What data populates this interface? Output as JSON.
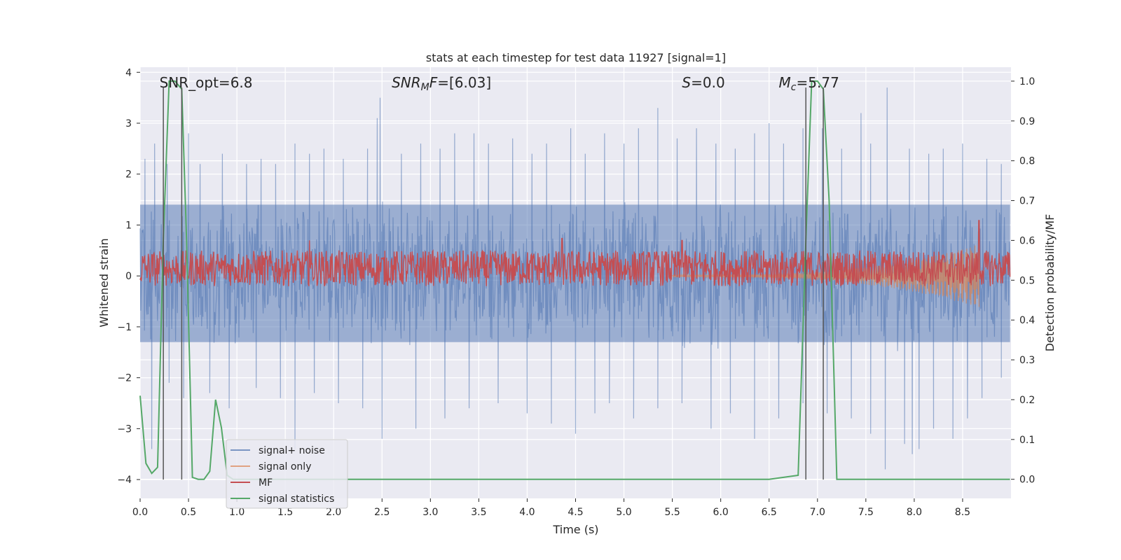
{
  "chart_data": {
    "type": "line",
    "title": "stats at each timestep for test data 11927 [signal=1]",
    "xlabel": "Time (s)",
    "ylabel_left": "Whitened strain",
    "ylabel_right": "Detection probability/MF",
    "xlim": [
      0.0,
      9.0
    ],
    "ylim_left": [
      -4.37,
      4.1
    ],
    "ylim_right": [
      -0.048,
      1.035
    ],
    "xticks": [
      0.0,
      0.5,
      1.0,
      1.5,
      2.0,
      2.5,
      3.0,
      3.5,
      4.0,
      4.5,
      5.0,
      5.5,
      6.0,
      6.5,
      7.0,
      7.5,
      8.0,
      8.5
    ],
    "xtick_labels": [
      "0.0",
      "0.5",
      "1.0",
      "1.5",
      "2.0",
      "2.5",
      "3.0",
      "3.5",
      "4.0",
      "4.5",
      "5.0",
      "5.5",
      "6.0",
      "6.5",
      "7.0",
      "7.5",
      "8.0",
      "8.5"
    ],
    "yticks_left": [
      -4,
      -3,
      -2,
      -1,
      0,
      1,
      2,
      3,
      4
    ],
    "ytick_labels_left": [
      "−4",
      "−3",
      "−2",
      "−1",
      "0",
      "1",
      "2",
      "3",
      "4"
    ],
    "yticks_right": [
      0.0,
      0.1,
      0.2,
      0.3,
      0.4,
      0.5,
      0.6,
      0.7,
      0.8,
      0.9,
      1.0
    ],
    "ytick_labels_right": [
      "0.0",
      "0.1",
      "0.2",
      "0.3",
      "0.4",
      "0.5",
      "0.6",
      "0.7",
      "0.8",
      "0.9",
      "1.0"
    ],
    "grid": true,
    "legend_placement": "lower-left",
    "annotations": [
      {
        "text": "SNR_opt=6.8",
        "x": 0.2
      },
      {
        "text": "SNR_MF=[6.03]",
        "x": 2.6
      },
      {
        "text": "S=0.0",
        "x": 5.6
      },
      {
        "text": "M_c=5.77",
        "x": 6.6
      }
    ],
    "vlines_x": [
      0.24,
      0.43,
      6.88,
      7.06
    ],
    "vlines_ymin": -4.0,
    "vlines_ymax": 3.7,
    "series": [
      {
        "name": "signal+ noise",
        "color": "#4c72b0",
        "axis": "left",
        "t_end": 8.99,
        "band_upper": 1.4,
        "band_lower": -1.3,
        "spikes_up": [
          [
            0.05,
            2.3
          ],
          [
            0.15,
            2.6
          ],
          [
            0.28,
            2.2
          ],
          [
            0.5,
            2.8
          ],
          [
            0.62,
            2.2
          ],
          [
            0.85,
            2.4
          ],
          [
            1.1,
            2.2
          ],
          [
            1.25,
            2.3
          ],
          [
            1.4,
            2.2
          ],
          [
            1.6,
            2.6
          ],
          [
            1.75,
            2.4
          ],
          [
            1.9,
            2.5
          ],
          [
            2.1,
            2.3
          ],
          [
            2.35,
            2.5
          ],
          [
            2.45,
            3.1
          ],
          [
            2.48,
            3.5
          ],
          [
            2.7,
            2.4
          ],
          [
            2.9,
            2.6
          ],
          [
            3.1,
            2.5
          ],
          [
            3.25,
            2.8
          ],
          [
            3.45,
            2.8
          ],
          [
            3.6,
            2.6
          ],
          [
            3.85,
            2.7
          ],
          [
            4.05,
            2.4
          ],
          [
            4.2,
            2.6
          ],
          [
            4.45,
            2.9
          ],
          [
            4.6,
            2.4
          ],
          [
            4.8,
            2.8
          ],
          [
            5.0,
            2.6
          ],
          [
            5.15,
            2.9
          ],
          [
            5.35,
            3.3
          ],
          [
            5.55,
            2.7
          ],
          [
            5.75,
            2.9
          ],
          [
            5.95,
            2.6
          ],
          [
            6.15,
            2.5
          ],
          [
            6.35,
            2.8
          ],
          [
            6.5,
            3.0
          ],
          [
            6.65,
            2.6
          ],
          [
            6.85,
            2.9
          ],
          [
            7.05,
            2.9
          ],
          [
            7.25,
            2.5
          ],
          [
            7.45,
            3.2
          ],
          [
            7.55,
            2.6
          ],
          [
            7.72,
            3.7
          ],
          [
            7.95,
            2.5
          ],
          [
            8.15,
            2.4
          ],
          [
            8.3,
            2.5
          ],
          [
            8.5,
            2.6
          ],
          [
            8.75,
            2.3
          ],
          [
            8.9,
            2.2
          ]
        ],
        "spikes_down": [
          [
            0.12,
            -3.4
          ],
          [
            0.3,
            -2.1
          ],
          [
            0.45,
            -2.4
          ],
          [
            0.72,
            -2.3
          ],
          [
            0.92,
            -2.6
          ],
          [
            1.2,
            -2.2
          ],
          [
            1.45,
            -2.4
          ],
          [
            1.6,
            -3.4
          ],
          [
            1.8,
            -2.3
          ],
          [
            2.05,
            -2.5
          ],
          [
            2.3,
            -2.6
          ],
          [
            2.5,
            -3.2
          ],
          [
            2.85,
            -3.0
          ],
          [
            3.15,
            -2.8
          ],
          [
            3.4,
            -2.6
          ],
          [
            3.7,
            -2.5
          ],
          [
            4.0,
            -2.7
          ],
          [
            4.25,
            -2.9
          ],
          [
            4.5,
            -3.1
          ],
          [
            4.7,
            -2.7
          ],
          [
            4.85,
            -2.5
          ],
          [
            5.1,
            -2.8
          ],
          [
            5.35,
            -2.6
          ],
          [
            5.6,
            -2.5
          ],
          [
            5.9,
            -3.0
          ],
          [
            6.1,
            -2.7
          ],
          [
            6.35,
            -3.2
          ],
          [
            6.6,
            -2.8
          ],
          [
            6.85,
            -2.5
          ],
          [
            7.1,
            -2.7
          ],
          [
            7.35,
            -2.8
          ],
          [
            7.55,
            -3.1
          ],
          [
            7.7,
            -3.8
          ],
          [
            7.9,
            -3.3
          ],
          [
            7.98,
            -3.5
          ],
          [
            8.05,
            -3.4
          ],
          [
            8.2,
            -3.0
          ],
          [
            8.4,
            -3.2
          ],
          [
            8.55,
            -2.8
          ],
          [
            8.7,
            -2.4
          ],
          [
            8.9,
            -2.0
          ]
        ]
      },
      {
        "name": "signal only",
        "color": "#dd8452",
        "axis": "left",
        "t_start": 5.5,
        "t_end": 8.67,
        "env_start": 0.02,
        "env_end": 0.62
      },
      {
        "name": "MF",
        "color": "#c44e52",
        "axis": "right",
        "t_end": 8.99,
        "base": 0.53,
        "amplitude": 0.045,
        "peaks": [
          [
            1.75,
            0.6
          ],
          [
            4.36,
            0.605
          ],
          [
            5.6,
            0.6
          ],
          [
            8.67,
            0.65
          ]
        ]
      },
      {
        "name": "signal statistics",
        "color": "#55a868",
        "axis": "right",
        "x": [
          0.0,
          0.06,
          0.12,
          0.18,
          0.24,
          0.3,
          0.36,
          0.43,
          0.48,
          0.54,
          0.6,
          0.66,
          0.72,
          0.78,
          0.84,
          0.9,
          0.96,
          1.02,
          1.5,
          2.0,
          2.5,
          3.0,
          3.5,
          4.0,
          4.5,
          5.0,
          5.5,
          6.0,
          6.5,
          6.8,
          6.88,
          6.94,
          7.0,
          7.06,
          7.12,
          7.2,
          7.5,
          8.0,
          8.5,
          8.99
        ],
        "y": [
          0.21,
          0.04,
          0.015,
          0.03,
          0.6,
          1.0,
          1.0,
          0.98,
          0.6,
          0.005,
          0.0,
          0.0,
          0.02,
          0.2,
          0.13,
          0.01,
          0.0,
          0.0,
          0.0,
          0.0,
          0.0,
          0.0,
          0.0,
          0.0,
          0.0,
          0.0,
          0.0,
          0.0,
          0.0,
          0.01,
          0.6,
          1.0,
          1.0,
          0.98,
          0.7,
          0.0,
          0.0,
          0.0,
          0.0,
          0.0
        ]
      }
    ]
  }
}
